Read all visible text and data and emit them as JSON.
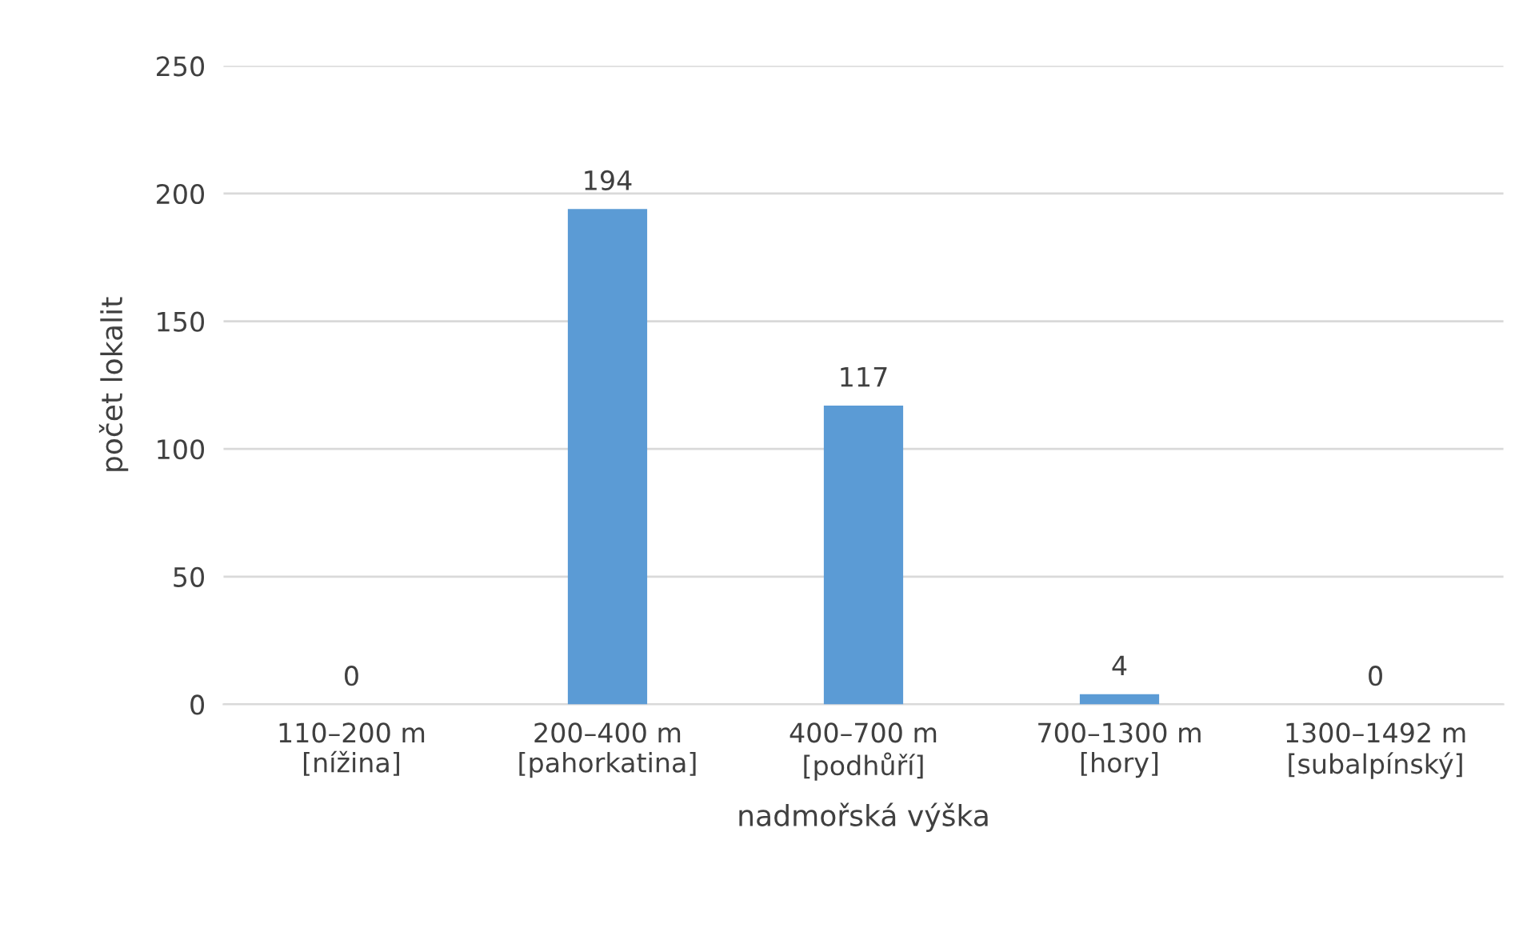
{
  "chart_data": {
    "type": "bar",
    "xlabel": "nadmořská výška",
    "ylabel": "počet lokalit",
    "categories": [
      "110–200 m\n[nížina]",
      "200–400 m\n[pahorkatina]",
      "400–700 m\n[podhůří]",
      "700–1300 m\n[hory]",
      "1300–1492 m\n[subalpínský]"
    ],
    "values": [
      0,
      194,
      117,
      4,
      0
    ],
    "color": "#5b9bd5",
    "ylim": [
      0,
      250
    ],
    "yticks": [
      0,
      50,
      100,
      150,
      200,
      250
    ],
    "grid": "y",
    "data_labels": true
  }
}
